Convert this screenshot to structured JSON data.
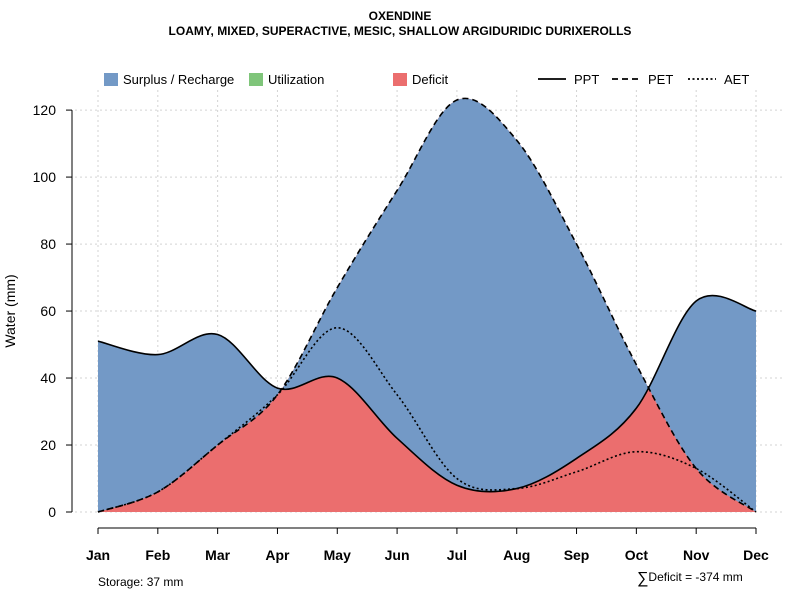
{
  "title": "OXENDINE",
  "subtitle": "LOAMY, MIXED, SUPERACTIVE, MESIC, SHALLOW ARGIDURIDIC DURIXEROLLS",
  "footer": {
    "storage": "Storage: 37 mm",
    "deficit_symbol": "∑",
    "deficit": "Deficit = -374 mm"
  },
  "colors": {
    "surplus": "#7399c6",
    "utilization": "#7fc57a",
    "deficit": "#eb6e6e",
    "grid": "#d3d3d3"
  },
  "chart_data": {
    "type": "area",
    "title": "OXENDINE",
    "subtitle": "LOAMY, MIXED, SUPERACTIVE, MESIC, SHALLOW ARGIDURIDIC DURIXEROLLS",
    "xlabel": "",
    "ylabel": "Water (mm)",
    "categories": [
      "Jan",
      "Feb",
      "Mar",
      "Apr",
      "May",
      "Jun",
      "Jul",
      "Aug",
      "Sep",
      "Oct",
      "Nov",
      "Dec"
    ],
    "ylim": [
      0,
      126
    ],
    "yticks": [
      0,
      20,
      40,
      60,
      80,
      100,
      120
    ],
    "grid": true,
    "legend": {
      "position": "top",
      "fills": [
        "Surplus / Recharge",
        "Utilization",
        "Deficit"
      ],
      "lines": [
        "PPT",
        "PET",
        "AET"
      ]
    },
    "series": [
      {
        "name": "PPT",
        "style": "solid",
        "values": [
          51,
          47,
          53,
          37,
          40,
          22,
          8,
          7,
          16,
          31,
          63,
          60
        ]
      },
      {
        "name": "PET",
        "style": "dashed",
        "values": [
          0,
          6,
          20,
          35,
          67,
          96,
          123,
          111,
          80,
          44,
          13,
          0
        ]
      },
      {
        "name": "AET",
        "style": "dotted",
        "values": [
          0,
          6,
          20,
          35,
          55,
          35,
          10,
          7,
          12,
          18,
          13,
          0
        ]
      }
    ]
  }
}
